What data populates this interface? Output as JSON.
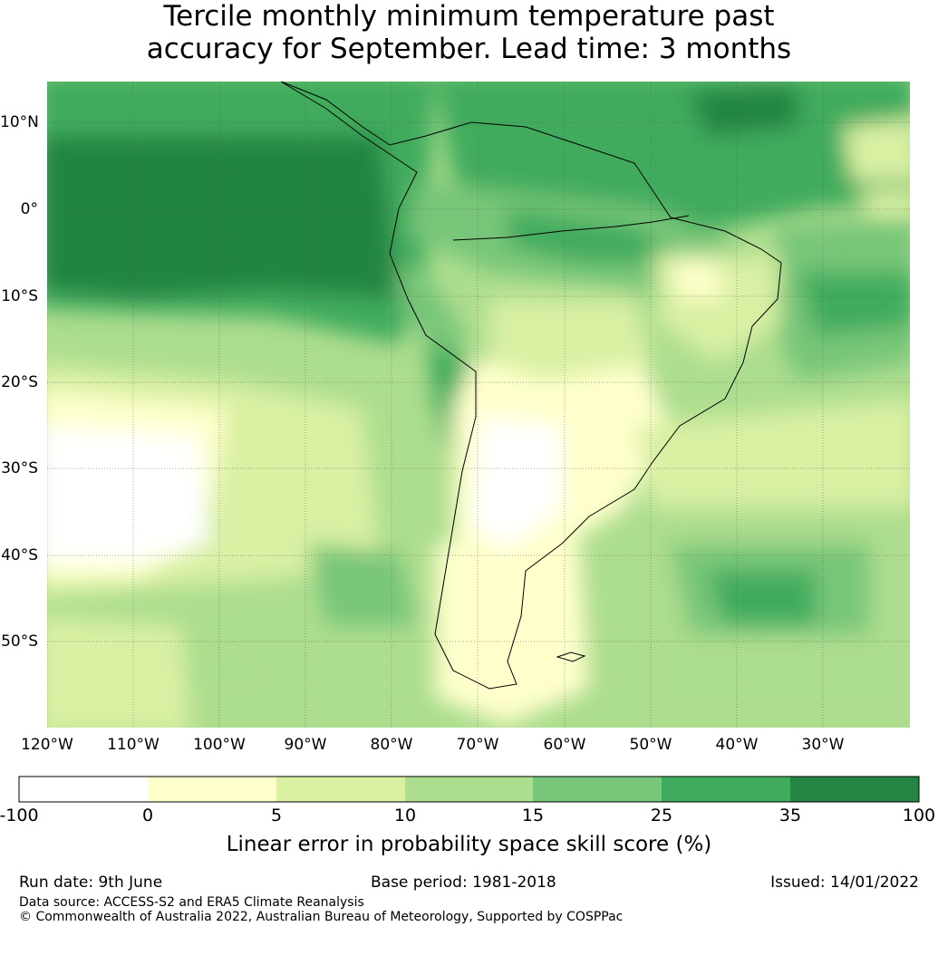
{
  "title": {
    "line1": "Tercile monthly minimum temperature past",
    "line2": "accuracy for September. Lead time: 3 months"
  },
  "map": {
    "lat_labels": [
      "10°N",
      "0°",
      "10°S",
      "20°S",
      "30°S",
      "40°S",
      "50°S"
    ],
    "lon_labels": [
      "120°W",
      "110°W",
      "100°W",
      "90°W",
      "80°W",
      "70°W",
      "60°W",
      "50°W",
      "40°W",
      "30°W"
    ]
  },
  "colorbar": {
    "tick_labels": [
      "-100",
      "0",
      "5",
      "10",
      "15",
      "25",
      "35",
      "100"
    ],
    "colors": [
      "#ffffff",
      "#ffffcc",
      "#d9f0a3",
      "#addd8e",
      "#78c679",
      "#41ab5d",
      "#238443"
    ],
    "caption": "Linear error in probability space skill score (%)"
  },
  "footer": {
    "run_date": "Run date: 9th June",
    "base_period": "Base period: 1981-2018",
    "issued": "Issued: 14/01/2022",
    "data_source": "Data source: ACCESS-S2 and ERA5 Climate Reanalysis",
    "copyright": "© Commonwealth of Australia 2022, Australian Bureau of Meteorology, Supported by COSPPac"
  }
}
